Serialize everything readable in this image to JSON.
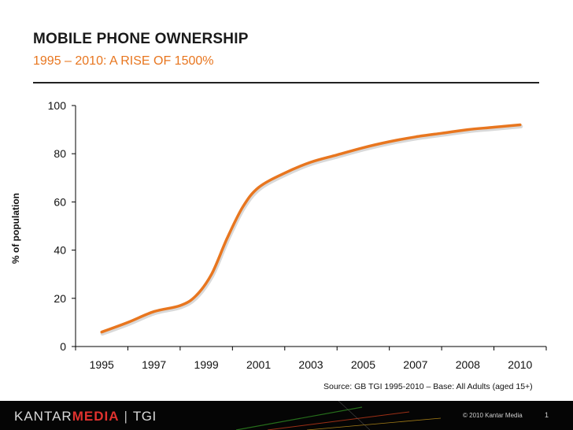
{
  "header": {
    "title": "MOBILE PHONE OWNERSHIP",
    "subtitle": "1995 – 2010: A RISE OF 1500%"
  },
  "chart_data": {
    "type": "line",
    "title": "",
    "xlabel": "",
    "ylabel": "% of population",
    "ylim": [
      0,
      100
    ],
    "yticks": [
      0,
      20,
      40,
      60,
      80,
      100
    ],
    "categories": [
      "1995",
      "1997",
      "1999",
      "2001",
      "2003",
      "2005",
      "2007",
      "2008",
      "2010"
    ],
    "grid": false,
    "legend": "none",
    "series": [
      {
        "color": "#e8761f",
        "points": [
          [
            0,
            6
          ],
          [
            0.5,
            10
          ],
          [
            1,
            14.5
          ],
          [
            1.5,
            17
          ],
          [
            1.8,
            21
          ],
          [
            2.1,
            30
          ],
          [
            2.4,
            45
          ],
          [
            2.7,
            58
          ],
          [
            3,
            66
          ],
          [
            3.5,
            72
          ],
          [
            4,
            76.5
          ],
          [
            4.5,
            79.5
          ],
          [
            5,
            82.5
          ],
          [
            5.5,
            85
          ],
          [
            6,
            87
          ],
          [
            6.5,
            88.5
          ],
          [
            7,
            90
          ],
          [
            7.5,
            91
          ],
          [
            8,
            92
          ]
        ]
      }
    ]
  },
  "source": "Source: GB TGI 1995-2010 – Base: All Adults (aged 15+)",
  "footer": {
    "brand_part1": "KANTAR",
    "brand_part2": "MEDIA",
    "brand_separator": "|",
    "brand_part3": "TGI",
    "copyright": "© 2010 Kantar Media",
    "page_number": "1"
  }
}
